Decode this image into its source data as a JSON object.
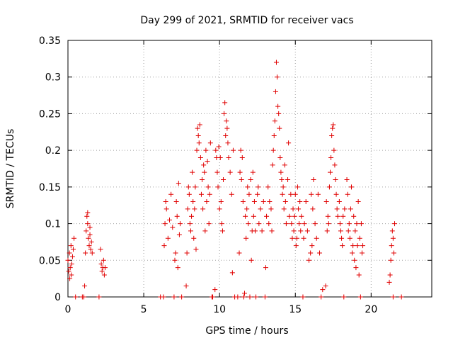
{
  "chart_data": {
    "type": "scatter",
    "title": "Day 299 of 2021, SRMTID for receiver vacs",
    "xlabel": "GPS time / hours",
    "ylabel": "SRMTID / TECUs",
    "xlim": [
      0,
      24
    ],
    "ylim": [
      0,
      0.35
    ],
    "xticks": [
      0,
      5,
      10,
      15,
      20
    ],
    "xtick_labels": [
      "0",
      "5",
      "10",
      "15",
      "20"
    ],
    "yticks": [
      0,
      0.05,
      0.1,
      0.15,
      0.2,
      0.25,
      0.3,
      0.35
    ],
    "ytick_labels": [
      "0",
      "0.05",
      "0.1",
      "0.15",
      "0.2",
      "0.25",
      "0.3",
      "0.35"
    ],
    "grid": true,
    "marker": "+",
    "color": "#e00000",
    "series": [
      {
        "name": "SRMTID",
        "points": [
          [
            0.0,
            0.05
          ],
          [
            0.05,
            0.035
          ],
          [
            0.1,
            0.06
          ],
          [
            0.15,
            0.04
          ],
          [
            0.2,
            0.07
          ],
          [
            0.25,
            0.045
          ],
          [
            0.3,
            0.055
          ],
          [
            0.35,
            0.065
          ],
          [
            0.4,
            0.08
          ],
          [
            0.12,
            0.025
          ],
          [
            0.22,
            0.03
          ],
          [
            0.5,
            0.0
          ],
          [
            0.95,
            0.0
          ],
          [
            1.05,
            0.0
          ],
          [
            1.1,
            0.015
          ],
          [
            1.15,
            0.06
          ],
          [
            1.2,
            0.09
          ],
          [
            1.25,
            0.11
          ],
          [
            1.3,
            0.1
          ],
          [
            1.35,
            0.08
          ],
          [
            1.4,
            0.07
          ],
          [
            1.45,
            0.085
          ],
          [
            1.5,
            0.065
          ],
          [
            1.55,
            0.075
          ],
          [
            1.6,
            0.06
          ],
          [
            1.3,
            0.115
          ],
          [
            1.45,
            0.095
          ],
          [
            2.05,
            0.0
          ],
          [
            2.15,
            0.065
          ],
          [
            2.2,
            0.045
          ],
          [
            2.25,
            0.035
          ],
          [
            2.3,
            0.04
          ],
          [
            2.35,
            0.05
          ],
          [
            2.4,
            0.03
          ],
          [
            2.45,
            0.04
          ],
          [
            6.1,
            0.0
          ],
          [
            6.3,
            0.0
          ],
          [
            6.35,
            0.07
          ],
          [
            6.4,
            0.1
          ],
          [
            6.45,
            0.13
          ],
          [
            6.5,
            0.12
          ],
          [
            6.6,
            0.08
          ],
          [
            6.7,
            0.105
          ],
          [
            6.8,
            0.14
          ],
          [
            6.9,
            0.095
          ],
          [
            7.0,
            0.0
          ],
          [
            7.05,
            0.05
          ],
          [
            7.1,
            0.06
          ],
          [
            7.15,
            0.13
          ],
          [
            7.2,
            0.11
          ],
          [
            7.25,
            0.04
          ],
          [
            7.3,
            0.155
          ],
          [
            7.35,
            0.085
          ],
          [
            7.4,
            0.1
          ],
          [
            7.5,
            0.0
          ],
          [
            7.8,
            0.015
          ],
          [
            7.85,
            0.06
          ],
          [
            7.9,
            0.12
          ],
          [
            7.95,
            0.15
          ],
          [
            8.0,
            0.14
          ],
          [
            8.05,
            0.1
          ],
          [
            8.1,
            0.09
          ],
          [
            8.15,
            0.11
          ],
          [
            8.2,
            0.17
          ],
          [
            8.25,
            0.13
          ],
          [
            8.3,
            0.08
          ],
          [
            8.35,
            0.12
          ],
          [
            8.4,
            0.15
          ],
          [
            8.45,
            0.065
          ],
          [
            8.5,
            0.2
          ],
          [
            8.55,
            0.23
          ],
          [
            8.6,
            0.22
          ],
          [
            8.65,
            0.21
          ],
          [
            8.7,
            0.235
          ],
          [
            8.75,
            0.19
          ],
          [
            8.8,
            0.14
          ],
          [
            8.85,
            0.16
          ],
          [
            8.9,
            0.12
          ],
          [
            8.95,
            0.18
          ],
          [
            9.0,
            0.17
          ],
          [
            9.05,
            0.09
          ],
          [
            9.1,
            0.2
          ],
          [
            9.15,
            0.13
          ],
          [
            9.2,
            0.185
          ],
          [
            9.25,
            0.15
          ],
          [
            9.3,
            0.1
          ],
          [
            9.35,
            0.14
          ],
          [
            9.4,
            0.21
          ],
          [
            9.5,
            0.0
          ],
          [
            9.55,
            0.0
          ],
          [
            9.7,
            0.01
          ],
          [
            9.75,
            0.2
          ],
          [
            9.8,
            0.19
          ],
          [
            9.85,
            0.17
          ],
          [
            9.9,
            0.15
          ],
          [
            9.95,
            0.205
          ],
          [
            10.0,
            0.12
          ],
          [
            10.05,
            0.19
          ],
          [
            10.1,
            0.13
          ],
          [
            10.15,
            0.1
          ],
          [
            10.2,
            0.09
          ],
          [
            10.25,
            0.16
          ],
          [
            10.3,
            0.25
          ],
          [
            10.35,
            0.265
          ],
          [
            10.4,
            0.22
          ],
          [
            10.45,
            0.24
          ],
          [
            10.5,
            0.23
          ],
          [
            10.55,
            0.21
          ],
          [
            10.6,
            0.19
          ],
          [
            10.7,
            0.17
          ],
          [
            10.8,
            0.14
          ],
          [
            10.9,
            0.2
          ],
          [
            11.0,
            0.0
          ],
          [
            10.85,
            0.033
          ],
          [
            11.2,
            0.0
          ],
          [
            11.3,
            0.06
          ],
          [
            11.35,
            0.17
          ],
          [
            11.4,
            0.2
          ],
          [
            11.45,
            0.16
          ],
          [
            11.5,
            0.19
          ],
          [
            11.55,
            0.13
          ],
          [
            11.6,
            0.0
          ],
          [
            11.65,
            0.005
          ],
          [
            11.7,
            0.11
          ],
          [
            11.75,
            0.08
          ],
          [
            11.8,
            0.12
          ],
          [
            11.85,
            0.15
          ],
          [
            11.9,
            0.1
          ],
          [
            11.95,
            0.14
          ],
          [
            12.0,
            0.0
          ],
          [
            12.05,
            0.16
          ],
          [
            12.1,
            0.05
          ],
          [
            12.15,
            0.09
          ],
          [
            12.2,
            0.17
          ],
          [
            12.25,
            0.11
          ],
          [
            12.3,
            0.13
          ],
          [
            12.35,
            0.09
          ],
          [
            12.4,
            0.0
          ],
          [
            12.5,
            0.14
          ],
          [
            12.55,
            0.15
          ],
          [
            12.6,
            0.1
          ],
          [
            12.7,
            0.12
          ],
          [
            12.8,
            0.09
          ],
          [
            12.9,
            0.13
          ],
          [
            13.0,
            0.0
          ],
          [
            13.05,
            0.04
          ],
          [
            13.1,
            0.11
          ],
          [
            13.2,
            0.15
          ],
          [
            13.25,
            0.1
          ],
          [
            13.3,
            0.13
          ],
          [
            13.4,
            0.12
          ],
          [
            13.45,
            0.09
          ],
          [
            13.5,
            0.18
          ],
          [
            13.55,
            0.2
          ],
          [
            13.6,
            0.22
          ],
          [
            13.65,
            0.24
          ],
          [
            13.7,
            0.28
          ],
          [
            13.75,
            0.32
          ],
          [
            13.8,
            0.3
          ],
          [
            13.85,
            0.26
          ],
          [
            13.9,
            0.25
          ],
          [
            13.95,
            0.23
          ],
          [
            14.0,
            0.19
          ],
          [
            14.05,
            0.17
          ],
          [
            14.1,
            0.16
          ],
          [
            14.15,
            0.14
          ],
          [
            14.2,
            0.15
          ],
          [
            14.25,
            0.12
          ],
          [
            14.3,
            0.18
          ],
          [
            14.35,
            0.13
          ],
          [
            14.4,
            0.1
          ],
          [
            14.5,
            0.16
          ],
          [
            14.55,
            0.21
          ],
          [
            14.6,
            0.11
          ],
          [
            14.7,
            0.14
          ],
          [
            14.75,
            0.1
          ],
          [
            14.8,
            0.08
          ],
          [
            14.85,
            0.12
          ],
          [
            14.9,
            0.09
          ],
          [
            14.95,
            0.11
          ],
          [
            15.0,
            0.14
          ],
          [
            15.05,
            0.07
          ],
          [
            15.1,
            0.08
          ],
          [
            15.15,
            0.15
          ],
          [
            15.2,
            0.12
          ],
          [
            15.25,
            0.1
          ],
          [
            15.3,
            0.13
          ],
          [
            15.35,
            0.09
          ],
          [
            15.4,
            0.11
          ],
          [
            15.5,
            0.0
          ],
          [
            15.55,
            0.08
          ],
          [
            15.6,
            0.1
          ],
          [
            15.7,
            0.13
          ],
          [
            15.8,
            0.09
          ],
          [
            15.9,
            0.05
          ],
          [
            16.0,
            0.06
          ],
          [
            16.05,
            0.14
          ],
          [
            16.1,
            0.07
          ],
          [
            16.15,
            0.12
          ],
          [
            16.2,
            0.16
          ],
          [
            16.3,
            0.1
          ],
          [
            16.4,
            0.08
          ],
          [
            16.5,
            0.14
          ],
          [
            16.6,
            0.06
          ],
          [
            16.7,
            0.0
          ],
          [
            16.8,
            0.01
          ],
          [
            17.0,
            0.015
          ],
          [
            17.05,
            0.13
          ],
          [
            17.1,
            0.09
          ],
          [
            17.15,
            0.11
          ],
          [
            17.2,
            0.1
          ],
          [
            17.25,
            0.15
          ],
          [
            17.3,
            0.17
          ],
          [
            17.35,
            0.19
          ],
          [
            17.4,
            0.22
          ],
          [
            17.45,
            0.23
          ],
          [
            17.5,
            0.235
          ],
          [
            17.55,
            0.2
          ],
          [
            17.6,
            0.18
          ],
          [
            17.65,
            0.16
          ],
          [
            17.7,
            0.14
          ],
          [
            17.75,
            0.12
          ],
          [
            17.8,
            0.11
          ],
          [
            17.9,
            0.13
          ],
          [
            17.95,
            0.1
          ],
          [
            18.0,
            0.09
          ],
          [
            18.05,
            0.08
          ],
          [
            18.1,
            0.07
          ],
          [
            18.15,
            0.11
          ],
          [
            18.2,
            0.0
          ],
          [
            18.25,
            0.12
          ],
          [
            18.4,
            0.16
          ],
          [
            18.45,
            0.14
          ],
          [
            18.5,
            0.09
          ],
          [
            18.55,
            0.1
          ],
          [
            18.6,
            0.08
          ],
          [
            18.65,
            0.12
          ],
          [
            18.7,
            0.15
          ],
          [
            18.75,
            0.06
          ],
          [
            18.8,
            0.07
          ],
          [
            18.85,
            0.11
          ],
          [
            18.9,
            0.05
          ],
          [
            18.95,
            0.09
          ],
          [
            19.0,
            0.04
          ],
          [
            19.05,
            0.1
          ],
          [
            19.1,
            0.07
          ],
          [
            19.15,
            0.13
          ],
          [
            19.2,
            0.03
          ],
          [
            19.25,
            0.08
          ],
          [
            19.3,
            0.0
          ],
          [
            19.35,
            0.1
          ],
          [
            19.4,
            0.06
          ],
          [
            19.45,
            0.07
          ],
          [
            21.2,
            0.02
          ],
          [
            21.25,
            0.03
          ],
          [
            21.3,
            0.05
          ],
          [
            21.35,
            0.07
          ],
          [
            21.4,
            0.09
          ],
          [
            21.45,
            0.08
          ],
          [
            21.5,
            0.06
          ],
          [
            21.55,
            0.1
          ],
          [
            21.45,
            0.0
          ],
          [
            22.0,
            0.0
          ]
        ]
      }
    ]
  }
}
